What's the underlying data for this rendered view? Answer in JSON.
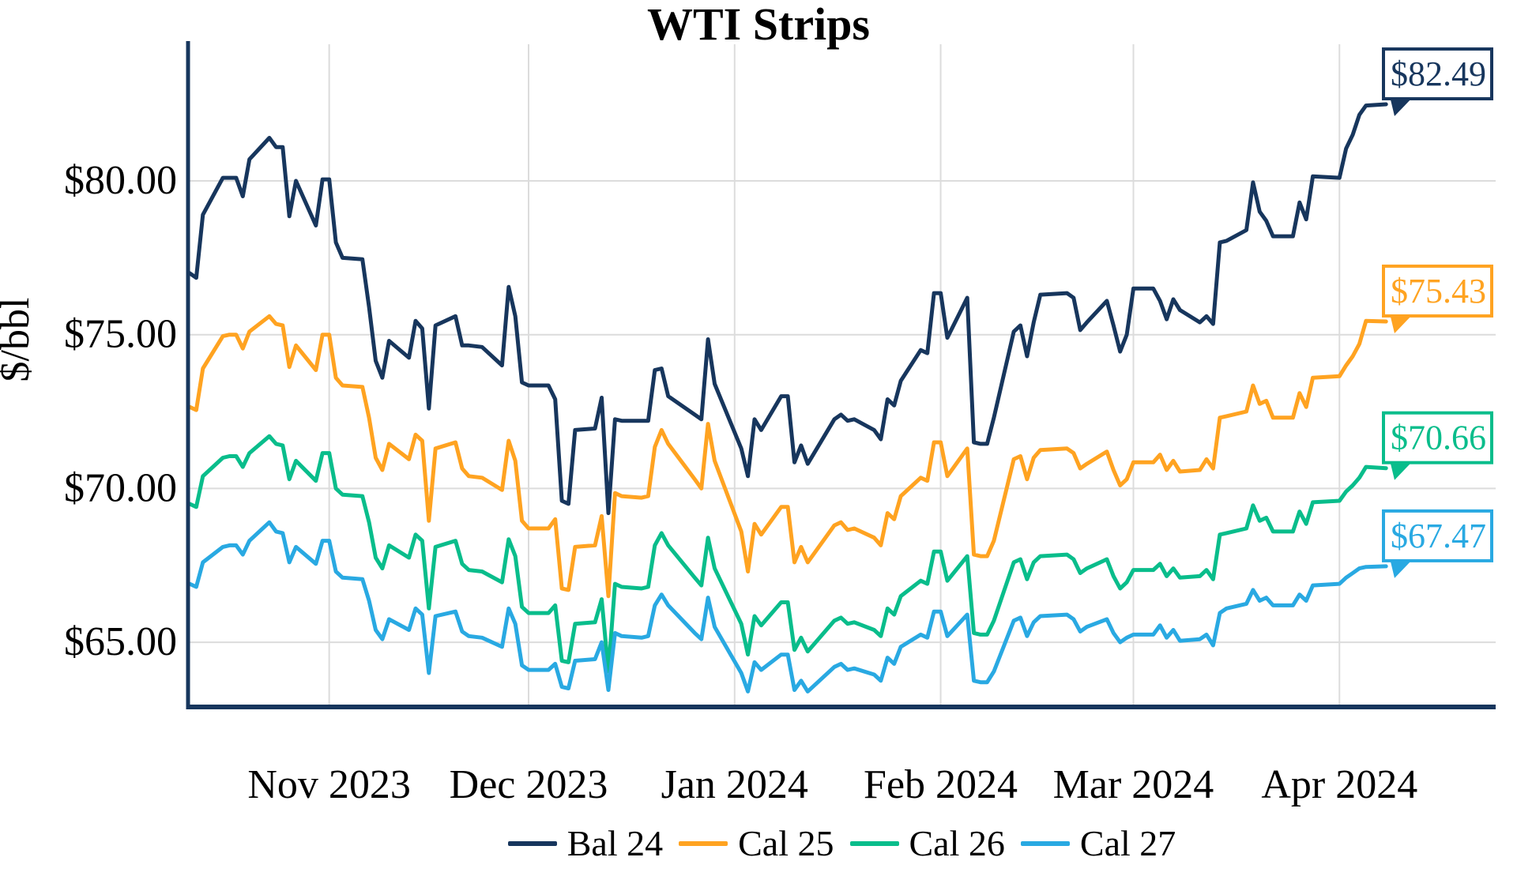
{
  "chart_data": {
    "type": "line",
    "title": "WTI Strips",
    "ylabel": "$/bbl",
    "grid": true,
    "legend_position": "bottom-center",
    "ylim": [
      62.9,
      84.5
    ],
    "xlim": [
      "2023-10-11",
      "2024-04-25"
    ],
    "y_ticks": [
      {
        "value": 80,
        "label": "$80.00"
      },
      {
        "value": 75,
        "label": "$75.00"
      },
      {
        "value": 70,
        "label": "$70.00"
      },
      {
        "value": 65,
        "label": "$65.00"
      }
    ],
    "x_ticks": [
      {
        "date": "2023-11-01",
        "label": "Nov 2023"
      },
      {
        "date": "2023-12-01",
        "label": "Dec 2023"
      },
      {
        "date": "2024-01-01",
        "label": "Jan 2024"
      },
      {
        "date": "2024-02-01",
        "label": "Feb 2024"
      },
      {
        "date": "2024-03-01",
        "label": "Mar 2024"
      },
      {
        "date": "2024-04-01",
        "label": "Apr 2024"
      }
    ],
    "dates": [
      "2023-10-11",
      "2023-10-12",
      "2023-10-13",
      "2023-10-16",
      "2023-10-17",
      "2023-10-18",
      "2023-10-19",
      "2023-10-20",
      "2023-10-23",
      "2023-10-24",
      "2023-10-25",
      "2023-10-26",
      "2023-10-27",
      "2023-10-30",
      "2023-10-31",
      "2023-11-01",
      "2023-11-02",
      "2023-11-03",
      "2023-11-06",
      "2023-11-07",
      "2023-11-08",
      "2023-11-09",
      "2023-11-10",
      "2023-11-13",
      "2023-11-14",
      "2023-11-15",
      "2023-11-16",
      "2023-11-17",
      "2023-11-20",
      "2023-11-21",
      "2023-11-22",
      "2023-11-24",
      "2023-11-27",
      "2023-11-28",
      "2023-11-29",
      "2023-11-30",
      "2023-12-01",
      "2023-12-04",
      "2023-12-05",
      "2023-12-06",
      "2023-12-07",
      "2023-12-08",
      "2023-12-11",
      "2023-12-12",
      "2023-12-13",
      "2023-12-14",
      "2023-12-15",
      "2023-12-18",
      "2023-12-19",
      "2023-12-20",
      "2023-12-21",
      "2023-12-22",
      "2023-12-26",
      "2023-12-27",
      "2023-12-28",
      "2023-12-29",
      "2024-01-02",
      "2024-01-03",
      "2024-01-04",
      "2024-01-05",
      "2024-01-08",
      "2024-01-09",
      "2024-01-10",
      "2024-01-11",
      "2024-01-12",
      "2024-01-16",
      "2024-01-17",
      "2024-01-18",
      "2024-01-19",
      "2024-01-22",
      "2024-01-23",
      "2024-01-24",
      "2024-01-25",
      "2024-01-26",
      "2024-01-29",
      "2024-01-30",
      "2024-01-31",
      "2024-02-01",
      "2024-02-02",
      "2024-02-05",
      "2024-02-06",
      "2024-02-07",
      "2024-02-08",
      "2024-02-09",
      "2024-02-12",
      "2024-02-13",
      "2024-02-14",
      "2024-02-15",
      "2024-02-16",
      "2024-02-20",
      "2024-02-21",
      "2024-02-22",
      "2024-02-23",
      "2024-02-26",
      "2024-02-27",
      "2024-02-28",
      "2024-02-29",
      "2024-03-01",
      "2024-03-04",
      "2024-03-05",
      "2024-03-06",
      "2024-03-07",
      "2024-03-08",
      "2024-03-11",
      "2024-03-12",
      "2024-03-13",
      "2024-03-14",
      "2024-03-15",
      "2024-03-18",
      "2024-03-19",
      "2024-03-20",
      "2024-03-21",
      "2024-03-22",
      "2024-03-25",
      "2024-03-26",
      "2024-03-27",
      "2024-03-28",
      "2024-04-01",
      "2024-04-02",
      "2024-04-03",
      "2024-04-04",
      "2024-04-05",
      "2024-04-08"
    ],
    "series": [
      {
        "name": "Bal 24",
        "color": "#17365D",
        "end_label": "$82.49",
        "values": [
          77.0,
          76.85,
          78.9,
          80.1,
          80.1,
          80.1,
          79.5,
          80.7,
          81.4,
          81.1,
          81.1,
          78.85,
          80.0,
          78.55,
          80.05,
          80.05,
          78.0,
          77.5,
          77.45,
          75.9,
          74.15,
          73.6,
          74.8,
          74.25,
          75.45,
          75.2,
          72.6,
          75.3,
          75.6,
          74.65,
          74.65,
          74.6,
          74.0,
          76.55,
          75.6,
          73.45,
          73.35,
          73.35,
          72.9,
          69.6,
          69.5,
          71.9,
          71.95,
          72.95,
          69.2,
          72.25,
          72.2,
          72.2,
          72.2,
          73.85,
          73.9,
          73.0,
          72.4,
          72.25,
          74.85,
          73.4,
          71.3,
          70.4,
          72.25,
          71.9,
          73.0,
          73.0,
          70.85,
          71.4,
          70.8,
          72.25,
          72.4,
          72.2,
          72.25,
          71.9,
          71.6,
          72.9,
          72.7,
          73.5,
          74.5,
          74.4,
          76.35,
          76.35,
          74.9,
          76.2,
          71.5,
          71.45,
          71.45,
          72.3,
          75.1,
          75.3,
          74.3,
          75.4,
          76.3,
          76.35,
          76.2,
          75.15,
          75.4,
          76.1,
          75.3,
          74.45,
          75.0,
          76.5,
          76.5,
          76.1,
          75.5,
          76.15,
          75.8,
          75.4,
          75.6,
          75.35,
          78.0,
          78.05,
          78.4,
          79.95,
          79.0,
          78.7,
          78.2,
          78.2,
          79.3,
          78.75,
          80.15,
          80.1,
          81.05,
          81.5,
          82.15,
          82.45,
          82.49
        ]
      },
      {
        "name": "Cal 25",
        "color": "#FFA321",
        "end_label": "$75.43",
        "values": [
          72.65,
          72.55,
          73.9,
          74.95,
          75.0,
          75.0,
          74.55,
          75.1,
          75.6,
          75.35,
          75.3,
          73.95,
          74.65,
          73.85,
          75.0,
          75.0,
          73.6,
          73.35,
          73.3,
          72.3,
          71.0,
          70.6,
          71.45,
          70.95,
          71.75,
          71.55,
          68.95,
          71.3,
          71.5,
          70.65,
          70.4,
          70.35,
          69.95,
          71.55,
          70.9,
          68.95,
          68.7,
          68.7,
          69.0,
          66.75,
          66.7,
          68.1,
          68.15,
          69.1,
          66.5,
          69.85,
          69.75,
          69.7,
          69.75,
          71.35,
          71.9,
          71.45,
          70.3,
          70.0,
          72.1,
          70.9,
          68.6,
          67.3,
          68.85,
          68.5,
          69.4,
          69.4,
          67.6,
          68.1,
          67.6,
          68.8,
          68.9,
          68.65,
          68.7,
          68.4,
          68.15,
          69.2,
          69.0,
          69.75,
          70.35,
          70.25,
          71.5,
          71.5,
          70.4,
          71.3,
          67.85,
          67.8,
          67.8,
          68.3,
          70.95,
          71.05,
          70.3,
          71.0,
          71.25,
          71.3,
          71.15,
          70.65,
          70.8,
          71.2,
          70.6,
          70.1,
          70.3,
          70.85,
          70.85,
          71.1,
          70.6,
          70.9,
          70.55,
          70.6,
          70.95,
          70.65,
          72.3,
          72.35,
          72.5,
          73.35,
          72.75,
          72.85,
          72.3,
          72.3,
          73.1,
          72.65,
          73.6,
          73.65,
          74.0,
          74.3,
          74.7,
          75.45,
          75.43
        ]
      },
      {
        "name": "Cal 26",
        "color": "#09BD8B",
        "end_label": "$70.66",
        "values": [
          69.5,
          69.4,
          70.4,
          71.0,
          71.05,
          71.05,
          70.7,
          71.15,
          71.7,
          71.45,
          71.4,
          70.3,
          70.9,
          70.25,
          71.15,
          71.15,
          70.0,
          69.8,
          69.75,
          68.9,
          67.75,
          67.4,
          68.15,
          67.75,
          68.5,
          68.3,
          66.1,
          68.1,
          68.3,
          67.55,
          67.35,
          67.3,
          66.95,
          68.35,
          67.8,
          66.15,
          65.95,
          65.95,
          66.2,
          64.4,
          64.35,
          65.6,
          65.65,
          66.4,
          64.05,
          66.9,
          66.8,
          66.75,
          66.8,
          68.15,
          68.55,
          68.15,
          67.1,
          66.85,
          68.4,
          67.4,
          65.6,
          64.6,
          65.85,
          65.55,
          66.3,
          66.3,
          64.75,
          65.15,
          64.7,
          65.7,
          65.8,
          65.6,
          65.65,
          65.4,
          65.2,
          66.1,
          65.9,
          66.5,
          67.0,
          66.9,
          67.95,
          67.95,
          67.0,
          67.8,
          65.3,
          65.25,
          65.25,
          65.7,
          67.6,
          67.7,
          67.05,
          67.6,
          67.8,
          67.85,
          67.7,
          67.25,
          67.4,
          67.7,
          67.15,
          66.75,
          66.95,
          67.35,
          67.35,
          67.55,
          67.15,
          67.4,
          67.1,
          67.15,
          67.35,
          67.05,
          68.5,
          68.55,
          68.7,
          69.45,
          68.95,
          69.05,
          68.6,
          68.6,
          69.25,
          68.85,
          69.55,
          69.6,
          69.9,
          70.1,
          70.35,
          70.7,
          70.66
        ]
      },
      {
        "name": "Cal 27",
        "color": "#29A9E2",
        "end_label": "$67.47",
        "values": [
          66.9,
          66.8,
          67.6,
          68.1,
          68.15,
          68.15,
          67.85,
          68.3,
          68.9,
          68.6,
          68.55,
          67.6,
          68.1,
          67.55,
          68.3,
          68.3,
          67.3,
          67.1,
          67.05,
          66.35,
          65.4,
          65.1,
          65.75,
          65.4,
          66.1,
          65.9,
          64.0,
          65.85,
          66.0,
          65.35,
          65.2,
          65.15,
          64.85,
          66.1,
          65.6,
          64.25,
          64.1,
          64.1,
          64.3,
          63.55,
          63.5,
          64.4,
          64.45,
          65.0,
          63.45,
          65.3,
          65.2,
          65.15,
          65.2,
          66.2,
          66.55,
          66.2,
          65.3,
          65.1,
          66.45,
          65.5,
          64.0,
          63.4,
          64.35,
          64.1,
          64.6,
          64.6,
          63.45,
          63.75,
          63.4,
          64.2,
          64.3,
          64.1,
          64.15,
          63.95,
          63.75,
          64.5,
          64.3,
          64.85,
          65.25,
          65.15,
          66.0,
          66.0,
          65.2,
          65.9,
          63.75,
          63.7,
          63.7,
          64.05,
          65.7,
          65.8,
          65.2,
          65.65,
          65.85,
          65.9,
          65.75,
          65.35,
          65.5,
          65.75,
          65.3,
          65.0,
          65.15,
          65.25,
          65.25,
          65.55,
          65.15,
          65.4,
          65.05,
          65.1,
          65.25,
          64.9,
          65.95,
          66.1,
          66.25,
          66.7,
          66.35,
          66.45,
          66.2,
          66.2,
          66.55,
          66.35,
          66.85,
          66.9,
          67.1,
          67.25,
          67.4,
          67.45,
          67.47
        ]
      }
    ]
  }
}
